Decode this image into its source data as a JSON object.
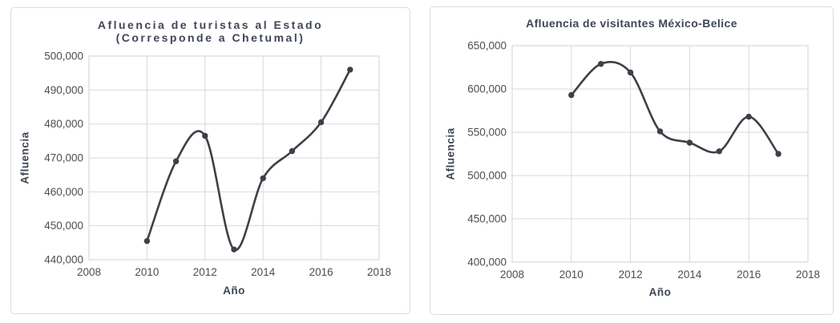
{
  "page": {
    "background": "#ffffff"
  },
  "chart_data": [
    {
      "type": "line",
      "title": "Afluencia de turistas al Estado (Corresponde a Chetumal)",
      "title_lines": [
        "Afluencia de turistas al Estado",
        "(Corresponde a Chetumal)"
      ],
      "xlabel": "Año",
      "ylabel": "Afluencia",
      "x": [
        2010,
        2011,
        2012,
        2013,
        2014,
        2015,
        2016,
        2017
      ],
      "values": [
        445500,
        469000,
        476500,
        443000,
        464000,
        472000,
        480500,
        496000
      ],
      "xlim": [
        2008,
        2018
      ],
      "xtick_step": 2,
      "ylim": [
        440000,
        500000
      ],
      "ytick_step": 10000,
      "grid": true,
      "legend": "none",
      "smooth": true,
      "marker": "circle",
      "line_color": "#3d4049",
      "grid_color": "#d9d9d9",
      "tick_color": "#4e4e4e",
      "title_color": "#3f4656"
    },
    {
      "type": "line",
      "title": "Afluencia de visitantes México-Belice",
      "title_lines": [
        "Afluencia de visitantes México-Belice"
      ],
      "xlabel": "Año",
      "ylabel": "Afluencia",
      "x": [
        2010,
        2011,
        2012,
        2013,
        2014,
        2015,
        2016,
        2017
      ],
      "values": [
        593000,
        629000,
        619000,
        551000,
        538000,
        528000,
        568000,
        525000
      ],
      "xlim": [
        2008,
        2018
      ],
      "xtick_step": 2,
      "ylim": [
        400000,
        650000
      ],
      "ytick_step": 50000,
      "grid": true,
      "legend": "none",
      "smooth": true,
      "marker": "circle",
      "line_color": "#3d4049",
      "grid_color": "#d9d9d9",
      "tick_color": "#4e4e4e",
      "title_color": "#3f4656"
    }
  ]
}
